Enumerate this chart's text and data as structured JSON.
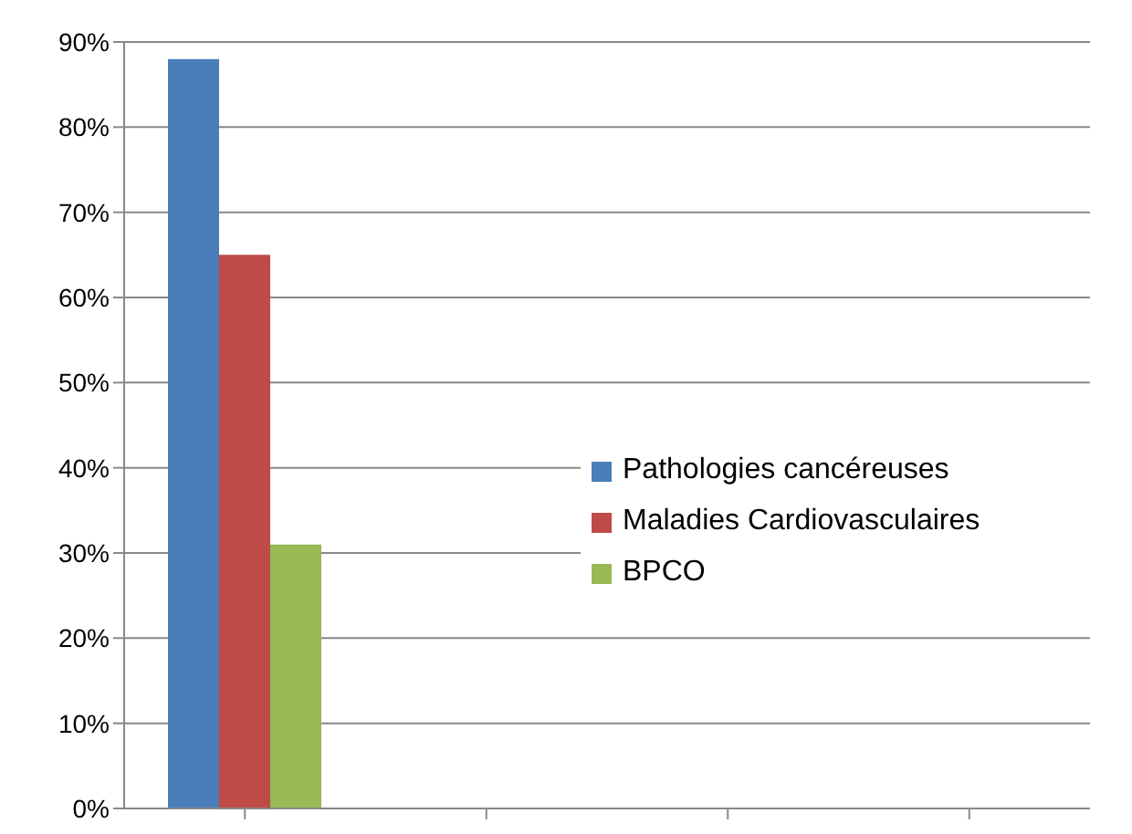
{
  "chart_data": {
    "type": "bar",
    "categories": [
      null,
      null,
      null,
      null
    ],
    "series": [
      {
        "name": "Pathologies cancéreuses",
        "color": "#4a7ebb",
        "values": [
          88,
          null,
          null,
          null
        ]
      },
      {
        "name": "Maladies Cardiovasculaires",
        "color": "#be4b48",
        "values": [
          65,
          null,
          null,
          null
        ]
      },
      {
        "name": "BPCO",
        "color": "#98b954",
        "values": [
          31,
          null,
          null,
          null
        ]
      }
    ],
    "ylim": [
      0,
      90
    ],
    "yticks": [
      {
        "value": 0,
        "label": "0%"
      },
      {
        "value": 10,
        "label": "10%"
      },
      {
        "value": 20,
        "label": "20%"
      },
      {
        "value": 30,
        "label": "30%"
      },
      {
        "value": 40,
        "label": "40%"
      },
      {
        "value": 50,
        "label": "50%"
      },
      {
        "value": 60,
        "label": "60%"
      },
      {
        "value": 70,
        "label": "70%"
      },
      {
        "value": 80,
        "label": "80%"
      },
      {
        "value": 90,
        "label": "90%"
      }
    ],
    "grid": "y",
    "legend": "right"
  }
}
